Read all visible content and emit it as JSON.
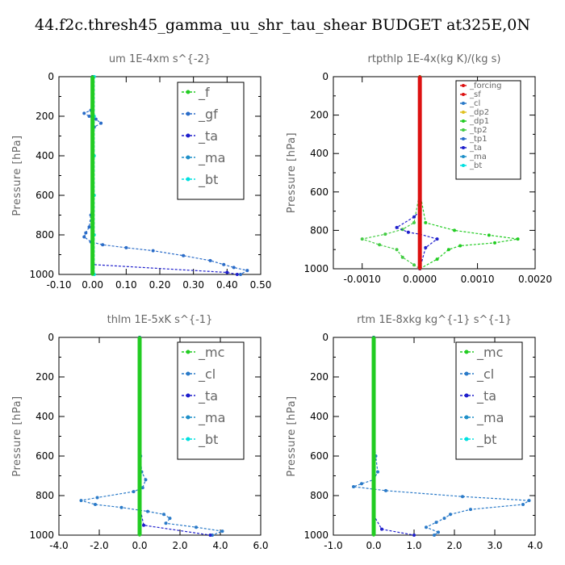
{
  "title": "44.f2c.thresh45_gamma_uu_shr_tau_shear  BUDGET at325E,0N",
  "colors": {
    "f": "#22cc22",
    "gf": "#2a6cc8",
    "ta": "#1f1fcc",
    "ma": "#1f8fc8",
    "bt": "#00e0e0",
    "forcing": "#dd1111",
    "sf": "#dd1111",
    "cl_orange": "#ff9900",
    "dp2": "#e0c020",
    "dp1": "#22cc22",
    "tp2": "#44cc44",
    "tp1": "#2a6cc8",
    "mc": "#22cc22",
    "cl": "#2a7ac8"
  },
  "chart_data": [
    {
      "id": "um",
      "type": "line",
      "title": "um   1E-4xm s^{-2}",
      "ylabel": "Pressure [hPa]",
      "xlim": [
        -0.1,
        0.5
      ],
      "ylim": [
        1000,
        0
      ],
      "xticks": [
        "-0.10",
        "0.00",
        "0.10",
        "0.20",
        "0.30",
        "0.40",
        "0.50"
      ],
      "yticks": [
        "0",
        "200",
        "400",
        "600",
        "800",
        "1000"
      ],
      "legend": [
        "_f",
        "_gf",
        "_ta",
        "_ma",
        "_bt"
      ],
      "series": [
        {
          "name": "_gf",
          "color_key": "gf",
          "points": [
            [
              0,
              0
            ],
            [
              0,
              50
            ],
            [
              0,
              100
            ],
            [
              0,
              150
            ],
            [
              -0.005,
              170
            ],
            [
              -0.025,
              185
            ],
            [
              -0.01,
              200
            ],
            [
              0.01,
              215
            ],
            [
              0.025,
              235
            ],
            [
              0.005,
              255
            ],
            [
              0,
              300
            ],
            [
              0,
              350
            ],
            [
              0,
              400
            ],
            [
              0,
              450
            ],
            [
              0,
              500
            ],
            [
              0,
              550
            ],
            [
              0,
              600
            ],
            [
              -0.005,
              700
            ],
            [
              -0.01,
              760
            ],
            [
              -0.02,
              790
            ],
            [
              -0.025,
              810
            ],
            [
              -0.005,
              835
            ],
            [
              0.03,
              850
            ],
            [
              0.1,
              865
            ],
            [
              0.18,
              880
            ],
            [
              0.27,
              905
            ],
            [
              0.35,
              930
            ],
            [
              0.39,
              950
            ],
            [
              0.42,
              965
            ],
            [
              0.46,
              980
            ],
            [
              0.44,
              1000
            ]
          ]
        },
        {
          "name": "_ta",
          "color_key": "ta",
          "points": [
            [
              0,
              0
            ],
            [
              0,
              200
            ],
            [
              0,
              500
            ],
            [
              0,
              800
            ],
            [
              0,
              950
            ],
            [
              0.4,
              990
            ],
            [
              0.43,
              1000
            ]
          ]
        },
        {
          "name": "_bt",
          "color_key": "bt",
          "points": [
            [
              0.005,
              0
            ],
            [
              0.005,
              200
            ],
            [
              0.005,
              400
            ],
            [
              0.005,
              600
            ],
            [
              0.005,
              800
            ],
            [
              0.005,
              1000
            ]
          ]
        },
        {
          "name": "_f",
          "color_key": "f",
          "points": [
            [
              0,
              0
            ],
            [
              0,
              100
            ],
            [
              0,
              200
            ],
            [
              0,
              300
            ],
            [
              0,
              400
            ],
            [
              0,
              500
            ],
            [
              0,
              600
            ],
            [
              0,
              700
            ],
            [
              0,
              800
            ],
            [
              0,
              900
            ],
            [
              0,
              1000
            ]
          ]
        }
      ]
    },
    {
      "id": "rtpthlp",
      "type": "line",
      "title": "rtpthlp   1E-4x(kg K)/(kg s)",
      "ylabel": "Pressure [hPa]",
      "xlim": [
        -0.0015,
        0.002
      ],
      "ylim": [
        1000,
        0
      ],
      "xticks": [
        "-0.0010",
        "0.0000",
        "0.0010",
        "0.0020"
      ],
      "yticks": [
        "0",
        "200",
        "400",
        "600",
        "800",
        "1000"
      ],
      "legend": [
        "_forcing",
        "_sf",
        "_cl",
        "_dp2",
        "_dp1",
        "_tp2",
        "_tp1",
        "_ta",
        "_ma",
        "_bt"
      ],
      "series": [
        {
          "name": "_dp1",
          "color_key": "dp1",
          "points": [
            [
              0,
              0
            ],
            [
              0,
              600
            ],
            [
              0.0001,
              760
            ],
            [
              0.0006,
              800
            ],
            [
              0.0012,
              825
            ],
            [
              0.0017,
              845
            ],
            [
              0.0013,
              865
            ],
            [
              0.0007,
              880
            ],
            [
              0.0005,
              900
            ],
            [
              0.0003,
              950
            ],
            [
              0,
              1000
            ]
          ]
        },
        {
          "name": "_tp2",
          "color_key": "tp2",
          "points": [
            [
              0,
              600
            ],
            [
              -0.0001,
              760
            ],
            [
              -0.0003,
              795
            ],
            [
              -0.0006,
              820
            ],
            [
              -0.001,
              845
            ],
            [
              -0.0007,
              875
            ],
            [
              -0.0004,
              900
            ],
            [
              -0.0003,
              940
            ],
            [
              -0.0001,
              980
            ],
            [
              0,
              1000
            ]
          ]
        },
        {
          "name": "_ta",
          "color_key": "ta",
          "points": [
            [
              0,
              700
            ],
            [
              -0.0001,
              730
            ],
            [
              -0.0004,
              785
            ],
            [
              -0.0002,
              810
            ],
            [
              0,
              820
            ],
            [
              0.0003,
              845
            ],
            [
              0.0001,
              890
            ],
            [
              0,
              1000
            ]
          ]
        },
        {
          "name": "_forcing",
          "color_key": "forcing",
          "points": [
            [
              0,
              0
            ],
            [
              0,
              200
            ],
            [
              0,
              400
            ],
            [
              0,
              600
            ],
            [
              0,
              800
            ],
            [
              0,
              1000
            ]
          ]
        }
      ]
    },
    {
      "id": "thlm",
      "type": "line",
      "title": "thlm   1E-5xK s^{-1}",
      "ylabel": "Pressure [hPa]",
      "xlim": [
        -4.0,
        6.0
      ],
      "ylim": [
        1000,
        0
      ],
      "xticks": [
        "-4.0",
        "-2.0",
        "0.0",
        "2.0",
        "4.0",
        "6.0"
      ],
      "yticks": [
        "0",
        "200",
        "400",
        "600",
        "800",
        "1000"
      ],
      "legend": [
        "_mc",
        "_cl",
        "_ta",
        "_ma",
        "_bt"
      ],
      "series": [
        {
          "name": "_cl",
          "color_key": "cl",
          "points": [
            [
              0,
              0
            ],
            [
              0,
              200
            ],
            [
              0,
              400
            ],
            [
              0,
              500
            ],
            [
              0.05,
              600
            ],
            [
              0.1,
              680
            ],
            [
              0.3,
              720
            ],
            [
              0.15,
              760
            ],
            [
              -0.3,
              780
            ],
            [
              -2.1,
              810
            ],
            [
              -2.9,
              825
            ],
            [
              -2.2,
              845
            ],
            [
              -0.9,
              860
            ],
            [
              0.4,
              880
            ],
            [
              1.2,
              895
            ],
            [
              1.5,
              915
            ],
            [
              1.3,
              940
            ],
            [
              2.8,
              960
            ],
            [
              4.1,
              980
            ],
            [
              3.6,
              1000
            ]
          ]
        },
        {
          "name": "_ta",
          "color_key": "ta",
          "points": [
            [
              0,
              0
            ],
            [
              0,
              300
            ],
            [
              0,
              700
            ],
            [
              0,
              850
            ],
            [
              0.2,
              950
            ],
            [
              3.5,
              1000
            ]
          ]
        },
        {
          "name": "_mc",
          "color_key": "mc",
          "points": [
            [
              0,
              0
            ],
            [
              0,
              100
            ],
            [
              0,
              200
            ],
            [
              0,
              300
            ],
            [
              0,
              400
            ],
            [
              0,
              500
            ],
            [
              0,
              600
            ],
            [
              0,
              700
            ],
            [
              0,
              800
            ],
            [
              0,
              900
            ],
            [
              0,
              1000
            ]
          ]
        }
      ]
    },
    {
      "id": "rtm",
      "type": "line",
      "title": "rtm   1E-8xkg kg^{-1} s^{-1}",
      "ylabel": "Pressure [hPa]",
      "xlim": [
        -1.0,
        4.0
      ],
      "ylim": [
        1000,
        0
      ],
      "xticks": [
        "-1.0",
        "0.0",
        "1.0",
        "2.0",
        "3.0",
        "4.0"
      ],
      "yticks": [
        "0",
        "200",
        "400",
        "600",
        "800",
        "1000"
      ],
      "legend": [
        "_mc",
        "_cl",
        "_ta",
        "_ma",
        "_bt"
      ],
      "series": [
        {
          "name": "_cl",
          "color_key": "cl",
          "points": [
            [
              0,
              0
            ],
            [
              0,
              300
            ],
            [
              0,
              500
            ],
            [
              0.05,
              600
            ],
            [
              0.1,
              680
            ],
            [
              0,
              720
            ],
            [
              -0.3,
              740
            ],
            [
              -0.5,
              755
            ],
            [
              0.3,
              775
            ],
            [
              2.2,
              805
            ],
            [
              3.85,
              825
            ],
            [
              3.7,
              845
            ],
            [
              2.4,
              870
            ],
            [
              1.9,
              895
            ],
            [
              1.75,
              915
            ],
            [
              1.55,
              935
            ],
            [
              1.3,
              960
            ],
            [
              1.6,
              985
            ],
            [
              1.5,
              1000
            ]
          ]
        },
        {
          "name": "_ta",
          "color_key": "ta",
          "points": [
            [
              0,
              0
            ],
            [
              0,
              300
            ],
            [
              0,
              700
            ],
            [
              0,
              900
            ],
            [
              0.2,
              970
            ],
            [
              1.0,
              1000
            ]
          ]
        },
        {
          "name": "_mc",
          "color_key": "mc",
          "points": [
            [
              0,
              0
            ],
            [
              0,
              100
            ],
            [
              0,
              200
            ],
            [
              0,
              300
            ],
            [
              0,
              400
            ],
            [
              0,
              500
            ],
            [
              0,
              600
            ],
            [
              0,
              700
            ],
            [
              0,
              800
            ],
            [
              0,
              900
            ],
            [
              0,
              1000
            ]
          ]
        }
      ]
    }
  ]
}
